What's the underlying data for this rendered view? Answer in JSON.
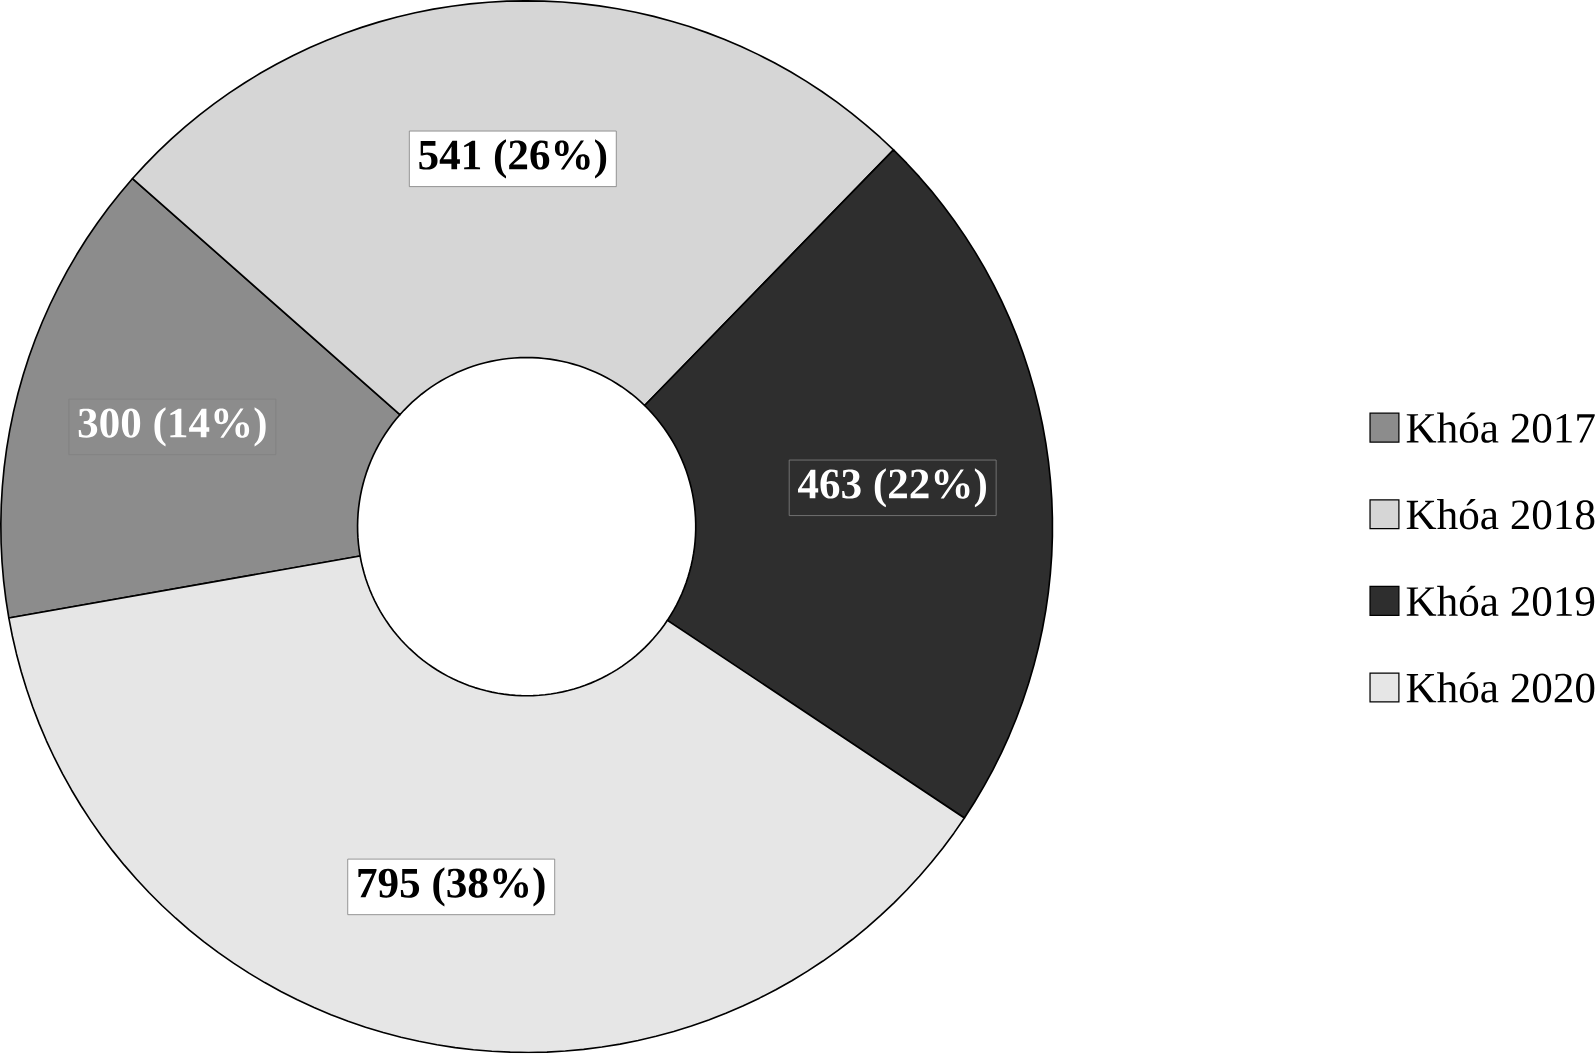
{
  "chart_data": {
    "type": "donut",
    "categories": [
      "Khóa 2017",
      "Khóa 2018",
      "Khóa 2019",
      "Khóa 2020"
    ],
    "values": [
      300,
      541,
      463,
      795
    ],
    "colors": [
      "#8c8c8c",
      "#d6d6d6",
      "#2e2e2e",
      "#e6e6e6"
    ],
    "value_labels": [
      "300 (14%)",
      "541 (26%)",
      "463 (22%)",
      "795 (38%)"
    ],
    "legend": "right"
  }
}
